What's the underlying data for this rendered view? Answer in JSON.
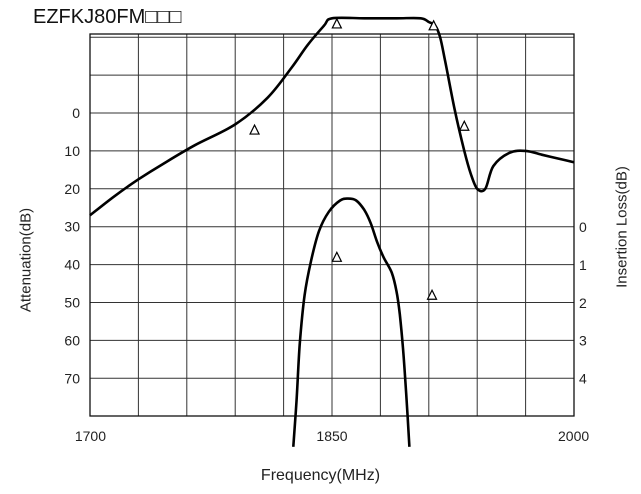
{
  "chart_data": {
    "type": "line",
    "title": "EZFKJ80FM□□□",
    "xlabel": "Frequency(MHz)",
    "ylabel_left": "Attenuation(dB)",
    "ylabel_right": "Insertion Loss(dB)",
    "xlim": [
      1700,
      2000
    ],
    "x_ticks": [
      "1700",
      "1850",
      "2000"
    ],
    "ylim_left": [
      -30,
      80
    ],
    "y_ticks_left": [
      "0",
      "10",
      "20",
      "30",
      "40",
      "50",
      "60",
      "70"
    ],
    "y_ticks_right": [
      "0",
      "1",
      "2",
      "3",
      "4"
    ],
    "grid": true,
    "series": [
      {
        "axis": "attenuation",
        "x": [
          1700,
          1715,
          1730,
          1745,
          1765,
          1790,
          1810,
          1825,
          1835,
          1845,
          1850,
          1870,
          1890,
          1905,
          1910,
          1914,
          1917,
          1920,
          1926,
          1932,
          1936,
          1940,
          1945,
          1950,
          1960,
          1970,
          1980,
          1990,
          2000
        ],
        "y": [
          27,
          22,
          17.5,
          13.5,
          8.5,
          3,
          -4,
          -12,
          -18,
          -23,
          -25,
          -25,
          -25,
          -25,
          -24,
          -23,
          -20,
          -14,
          -1,
          10,
          16,
          20,
          20,
          14,
          10.5,
          10,
          11,
          12,
          13
        ]
      },
      {
        "axis": "insertion_loss",
        "x": [
          1826,
          1828,
          1830,
          1833,
          1837,
          1842,
          1848,
          1855,
          1860,
          1865,
          1870,
          1874,
          1878,
          1882,
          1887,
          1890,
          1892,
          1894,
          1896,
          1898
        ],
        "y": [
          5.8,
          4.6,
          3.1,
          1.8,
          0.9,
          0.1,
          -0.4,
          -0.7,
          -0.75,
          -0.7,
          -0.45,
          -0.1,
          0.4,
          0.8,
          1.2,
          1.7,
          2.3,
          3.2,
          4.4,
          5.8
        ]
      }
    ],
    "markers": [
      {
        "axis": "attenuation",
        "x": 1802,
        "y": 4.5
      },
      {
        "axis": "attenuation",
        "x": 1853,
        "y": -23.5
      },
      {
        "axis": "attenuation",
        "x": 1913,
        "y": -23
      },
      {
        "axis": "attenuation",
        "x": 1932,
        "y": 3.5
      },
      {
        "axis": "insertion_loss",
        "x": 1853,
        "y": 0.8
      },
      {
        "axis": "insertion_loss",
        "x": 1912,
        "y": 1.8
      }
    ]
  }
}
